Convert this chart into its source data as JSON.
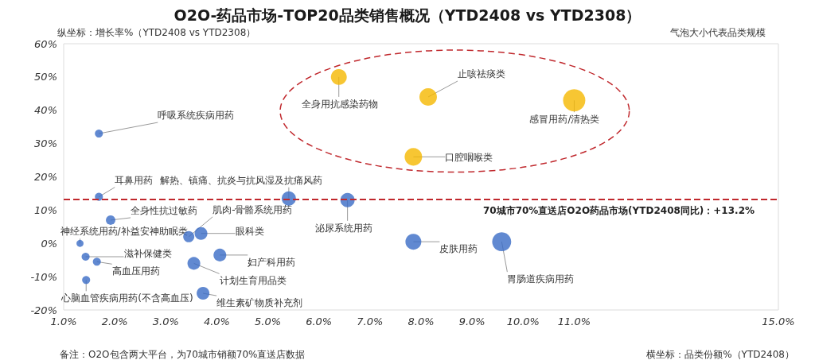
{
  "chart_data": {
    "type": "bubble",
    "title": "O2O-药品市场-TOP20品类销售概况（YTD2408 vs YTD2308）",
    "ylabel": "纵坐标：增长率%（YTD2408 vs YTD2308）",
    "xlabel": "横坐标：品类份额%（YTD2408）",
    "x": [
      1.69,
      1.69,
      1.92,
      1.32,
      1.43,
      1.65,
      1.44,
      3.45,
      3.69,
      5.41,
      6.56,
      4.06,
      3.55,
      3.73,
      7.85,
      9.58,
      6.39,
      8.14,
      7.85,
      11
    ],
    "values": [
      33,
      14,
      7,
      0,
      -4,
      -5.5,
      -11,
      2,
      3,
      13.5,
      13,
      -3.5,
      -6,
      -15,
      0.5,
      0.5,
      50,
      44,
      26,
      43
    ],
    "sizes": [
      0.13,
      0.13,
      0.18,
      0.1,
      0.13,
      0.13,
      0.13,
      0.25,
      0.33,
      0.41,
      0.41,
      0.33,
      0.33,
      0.33,
      0.51,
      0.73,
      0.51,
      0.62,
      0.62,
      1
    ],
    "colors": [
      "#3a6cc6",
      "#3a6cc6",
      "#3a6cc6",
      "#3a6cc6",
      "#3a6cc6",
      "#3a6cc6",
      "#3a6cc6",
      "#3a6cc6",
      "#3a6cc6",
      "#3a6cc6",
      "#3a6cc6",
      "#3a6cc6",
      "#3a6cc6",
      "#3a6cc6",
      "#3a6cc6",
      "#3a6cc6",
      "#f5b800",
      "#f5b800",
      "#f5b800",
      "#f5b800"
    ],
    "xlim": [
      1,
      15
    ],
    "xticks": [
      {
        "value": 1,
        "label": "1.0%"
      },
      {
        "value": 2,
        "label": "2.0%"
      },
      {
        "value": 3,
        "label": "3.0%"
      },
      {
        "value": 4,
        "label": "4.0%"
      },
      {
        "value": 5,
        "label": "5.0%"
      },
      {
        "value": 6,
        "label": "6.0%"
      },
      {
        "value": 7,
        "label": "7.0%"
      },
      {
        "value": 8,
        "label": "8.0%"
      },
      {
        "value": 9,
        "label": "9.0%"
      },
      {
        "value": 10,
        "label": "10.0%"
      },
      {
        "value": 11,
        "label": "11.0%"
      },
      {
        "value": 15,
        "label": "15.0%"
      }
    ],
    "ylim": [
      -20,
      60
    ],
    "yticks": [
      {
        "value": -20,
        "label": "-20%"
      },
      {
        "value": -10,
        "label": "-10%"
      },
      {
        "value": 0,
        "label": "0%"
      },
      {
        "value": 10,
        "label": "10%"
      },
      {
        "value": 20,
        "label": "20%"
      },
      {
        "value": 30,
        "label": "30%"
      },
      {
        "value": 40,
        "label": "40%"
      },
      {
        "value": 50,
        "label": "50%"
      },
      {
        "value": 60,
        "label": "60%"
      }
    ],
    "ref_lines": [
      {
        "axis": "y",
        "value": 13.2,
        "label": "70城市70%直送店O2O药品市场(YTD2408同比)：+13.2%",
        "color": "#c0282d",
        "line_style": "dashed"
      }
    ],
    "grid": false,
    "annotations": [
      "气泡大小代表品类规模",
      "备注：O2O包含两大平台，为70城市销额70%直送店数据",
      {
        "text": "呼吸系统疾病用药",
        "x": 1.69,
        "y": 33
      },
      {
        "text": "耳鼻用药",
        "x": 1.69,
        "y": 14
      },
      {
        "text": "全身性抗过敏药",
        "x": 1.92,
        "y": 7
      },
      {
        "text": "神经系统用药/补益安神助眠类",
        "x": 1.32,
        "y": 0
      },
      {
        "text": "滋补保健类",
        "x": 1.43,
        "y": -4
      },
      {
        "text": "高血压用药",
        "x": 1.65,
        "y": -5.5
      },
      {
        "text": "心脑血管疾病用药(不含高血压)",
        "x": 1.44,
        "y": -11
      },
      {
        "text": "肌肉-骨骼系统用药",
        "x": 3.45,
        "y": 2
      },
      {
        "text": "眼科类",
        "x": 3.69,
        "y": 3
      },
      {
        "text": "解热、镇痛、抗炎与抗风湿及抗痛风药",
        "x": 5.41,
        "y": 13.5
      },
      {
        "text": "泌尿系统用药",
        "x": 6.56,
        "y": 13
      },
      {
        "text": "妇产科用药",
        "x": 4.06,
        "y": -3.5
      },
      {
        "text": "计划生育用品类",
        "x": 3.55,
        "y": -6
      },
      {
        "text": "维生素矿物质补充剂",
        "x": 3.73,
        "y": -15
      },
      {
        "text": "皮肤用药",
        "x": 7.85,
        "y": 0.5
      },
      {
        "text": "胃肠道疾病用药",
        "x": 9.58,
        "y": 0.5
      },
      {
        "text": "全身用抗感染药物",
        "x": 6.39,
        "y": 50
      },
      {
        "text": "止咳祛痰类",
        "x": 8.14,
        "y": 44
      },
      {
        "text": "口腔咽喉类",
        "x": 7.85,
        "y": 26
      },
      {
        "text": "感冒用药/清热类",
        "x": 11,
        "y": 43
      }
    ]
  }
}
